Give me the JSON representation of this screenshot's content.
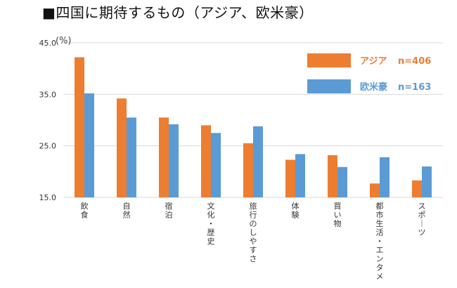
{
  "chart_data": {
    "type": "bar",
    "title": "■四国に期待するもの（アジア、欧米豪）",
    "unit_label": "(%)",
    "categories": [
      "飲食",
      "自然",
      "宿泊",
      "文化・歴史",
      "旅行のしやすさ",
      "体験",
      "買い物",
      "都市生活・エンタメ",
      "スポーツ"
    ],
    "series": [
      {
        "name": "アジア",
        "n_label": "n=406",
        "color": "#ED7D31",
        "values": [
          42.2,
          34.2,
          30.5,
          29.0,
          25.5,
          22.3,
          23.2,
          17.7,
          18.3
        ]
      },
      {
        "name": "欧米豪",
        "n_label": "n=163",
        "color": "#5B9BD5",
        "values": [
          35.2,
          30.5,
          29.2,
          27.5,
          28.8,
          23.4,
          20.9,
          22.8,
          21.0
        ]
      }
    ],
    "y_ticks": [
      "15.0",
      "25.0",
      "35.0",
      "45.0"
    ],
    "ylim": [
      15,
      45
    ],
    "grid": true,
    "legend_position": "top-right"
  }
}
